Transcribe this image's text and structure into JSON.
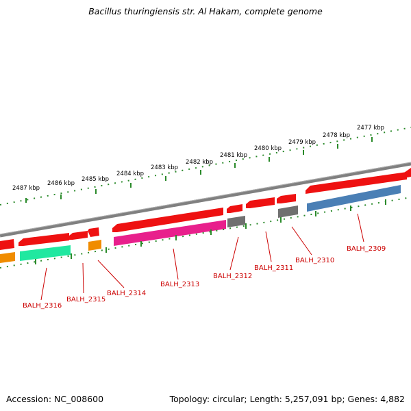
{
  "title": "Bacillus thuringiensis str. Al Hakam, complete genome",
  "accession_text": "Accession: NC_008600",
  "summary_text": "Topology: circular; Length: 5,257,091 bp; Genes: 4,882",
  "kbp_labels": [
    "2477 kbp",
    "2478 kbp",
    "2479 kbp",
    "2480 kbp",
    "2481 kbp",
    "2482 kbp",
    "2483 kbp",
    "2484 kbp",
    "2485 kbp",
    "2486 kbp",
    "2487 kbp"
  ],
  "gene_labels": [
    "BALH_2309",
    "BALH_2310",
    "BALH_2311",
    "BALH_2312",
    "BALH_2313",
    "BALH_2314",
    "BALH_2315",
    "BALH_2316"
  ],
  "colors": {
    "gene_arrow": "#ee1111",
    "backbone": "#808080",
    "ticks": "#2a8a2a",
    "label": "#cc0000",
    "cds_blue": "#4a7fb5",
    "cds_grey": "#707070",
    "cds_pink": "#e8208c",
    "cds_orange": "#f08c00",
    "cds_green": "#20e8a0"
  }
}
